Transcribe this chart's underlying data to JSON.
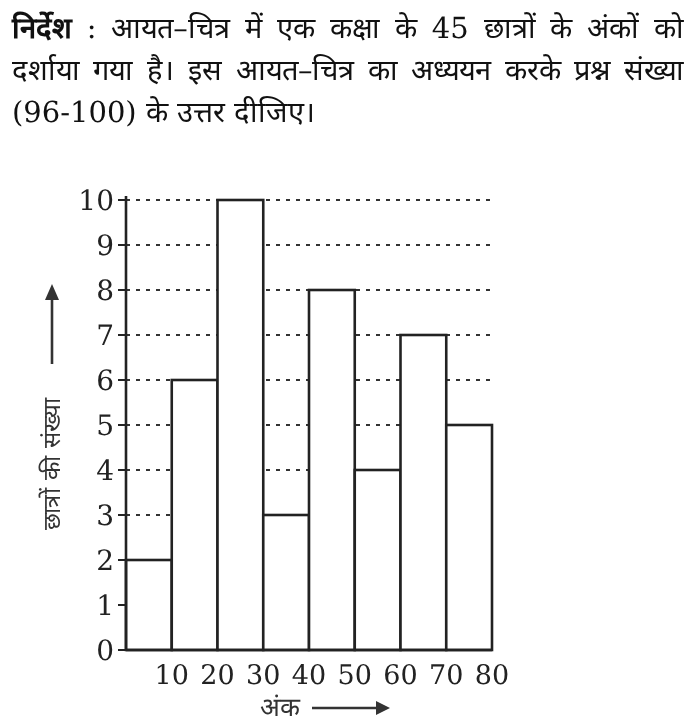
{
  "chart_data": {
    "type": "histogram",
    "title": "**निर्देश** : आयत–चित्र में एक कक्षा के 45 छात्रों के अंकों को दर्शाया गया है। इस आयत–चित्र का अध्ययन करके प्रश्न संख्या (96-100) के उत्तर दीजिए।",
    "xlabel": "अंक",
    "ylabel": "छात्रों की संख्या",
    "bins": [
      0,
      10,
      20,
      30,
      40,
      50,
      60,
      70,
      80
    ],
    "values": [
      2,
      6,
      10,
      3,
      8,
      4,
      7,
      5
    ],
    "color": "#ffffff",
    "xlim": [
      0,
      80
    ],
    "ylim": [
      0,
      10
    ],
    "xticks": [
      10,
      20,
      30,
      40,
      50,
      60,
      70,
      80
    ],
    "yticks": [
      0,
      1,
      2,
      3,
      4,
      5,
      6,
      7,
      8,
      9,
      10
    ],
    "grid": "y"
  }
}
